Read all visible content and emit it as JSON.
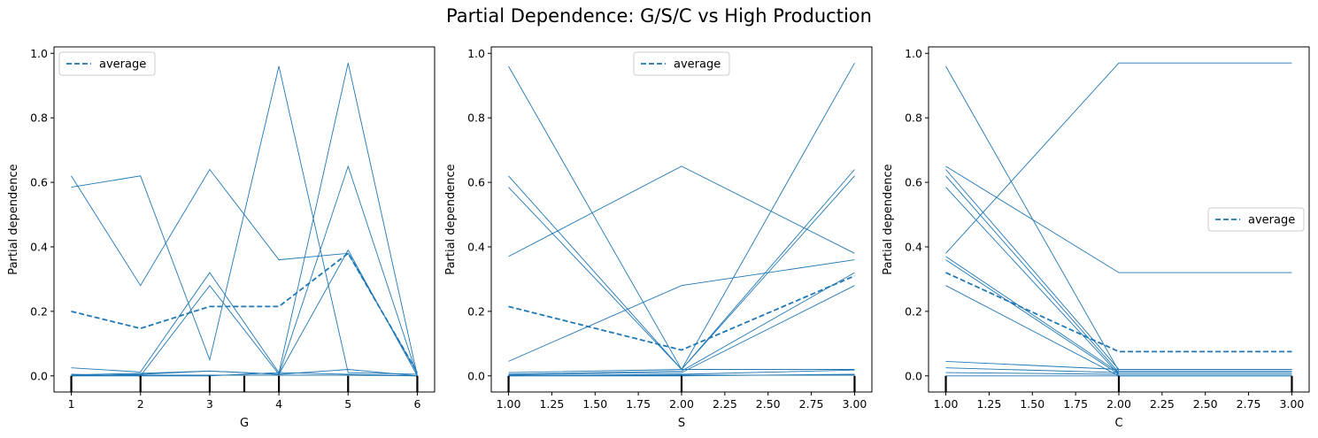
{
  "title": "Partial Dependence: G/S/C vs High Production",
  "colors": {
    "line": "#1f77b4",
    "rug": "#000000",
    "axis": "#000000",
    "legend_border": "#cccccc"
  },
  "chart_data": [
    {
      "type": "line",
      "title": "",
      "xlabel": "G",
      "ylabel": "Partial dependence",
      "xlim": [
        0.75,
        6.25
      ],
      "ylim": [
        -0.05,
        1.02
      ],
      "x_ticks": [
        1,
        2,
        3,
        4,
        5,
        6
      ],
      "x_tick_labels": [
        "1",
        "2",
        "3",
        "4",
        "5",
        "6"
      ],
      "y_ticks": [
        0,
        0.2,
        0.4,
        0.6,
        0.8,
        1.0
      ],
      "y_tick_labels": [
        "0.0",
        "0.2",
        "0.4",
        "0.6",
        "0.8",
        "1.0"
      ],
      "legend": {
        "label": "average",
        "location": "upper-left"
      },
      "x": [
        1,
        2,
        3,
        4,
        5,
        6
      ],
      "ice_lines": [
        [
          0.62,
          0.28,
          0.64,
          0.36,
          0.38,
          0.01
        ],
        [
          0.585,
          0.62,
          0.05,
          0.96,
          0.01,
          0.005
        ],
        [
          0.025,
          0.012,
          0.32,
          0.01,
          0.97,
          0.0
        ],
        [
          0.005,
          0.0,
          0.28,
          0.005,
          0.65,
          0.0
        ],
        [
          0.003,
          0.008,
          0.015,
          0.005,
          0.39,
          0.0
        ],
        [
          0.0,
          0.005,
          0.015,
          0.005,
          0.02,
          0.0
        ],
        [
          0.0,
          0.0,
          0.0,
          0.01,
          0.005,
          0.0
        ],
        [
          0.002,
          0.002,
          0.002,
          0.002,
          0.002,
          0.0
        ]
      ],
      "average": [
        0.2,
        0.147,
        0.215,
        0.215,
        0.38,
        0.01
      ],
      "rug": [
        1,
        2,
        3,
        3.5,
        4,
        5,
        6
      ]
    },
    {
      "type": "line",
      "title": "",
      "xlabel": "S",
      "ylabel": "Partial dependence",
      "xlim": [
        0.9,
        3.1
      ],
      "ylim": [
        -0.05,
        1.02
      ],
      "x_ticks": [
        1.0,
        1.25,
        1.5,
        1.75,
        2.0,
        2.25,
        2.5,
        2.75,
        3.0
      ],
      "x_tick_labels": [
        "1.00",
        "1.25",
        "1.50",
        "1.75",
        "2.00",
        "2.25",
        "2.50",
        "2.75",
        "3.00"
      ],
      "y_ticks": [
        0,
        0.2,
        0.4,
        0.6,
        0.8,
        1.0
      ],
      "y_tick_labels": [
        "0.0",
        "0.2",
        "0.4",
        "0.6",
        "0.8",
        "1.0"
      ],
      "legend": {
        "label": "average",
        "location": "upper-center"
      },
      "x": [
        1,
        2,
        3
      ],
      "ice_lines": [
        [
          0.96,
          0.02,
          0.97
        ],
        [
          0.62,
          0.02,
          0.64
        ],
        [
          0.585,
          0.02,
          0.62
        ],
        [
          0.37,
          0.65,
          0.38
        ],
        [
          0.045,
          0.28,
          0.36
        ],
        [
          0.005,
          0.015,
          0.32
        ],
        [
          0.005,
          0.01,
          0.28
        ],
        [
          0.01,
          0.02,
          0.02
        ],
        [
          0.0,
          0.005,
          0.018
        ],
        [
          0.0,
          0.0,
          0.005
        ],
        [
          0.002,
          0.002,
          0.002
        ]
      ],
      "average": [
        0.215,
        0.08,
        0.31
      ],
      "rug": [
        1,
        2,
        3
      ]
    },
    {
      "type": "line",
      "title": "",
      "xlabel": "C",
      "ylabel": "Partial dependence",
      "xlim": [
        0.9,
        3.1
      ],
      "ylim": [
        -0.05,
        1.02
      ],
      "x_ticks": [
        1.0,
        1.25,
        1.5,
        1.75,
        2.0,
        2.25,
        2.5,
        2.75,
        3.0
      ],
      "x_tick_labels": [
        "1.00",
        "1.25",
        "1.50",
        "1.75",
        "2.00",
        "2.25",
        "2.50",
        "2.75",
        "3.00"
      ],
      "y_ticks": [
        0,
        0.2,
        0.4,
        0.6,
        0.8,
        1.0
      ],
      "y_tick_labels": [
        "0.0",
        "0.2",
        "0.4",
        "0.6",
        "0.8",
        "1.0"
      ],
      "legend": {
        "label": "average",
        "location": "center-right"
      },
      "x": [
        1,
        2,
        3
      ],
      "ice_lines": [
        [
          0.96,
          0.015,
          0.015
        ],
        [
          0.38,
          0.97,
          0.97
        ],
        [
          0.65,
          0.32,
          0.32
        ],
        [
          0.64,
          0.02,
          0.02
        ],
        [
          0.62,
          0.01,
          0.01
        ],
        [
          0.585,
          0.005,
          0.005
        ],
        [
          0.37,
          0.01,
          0.01
        ],
        [
          0.36,
          0.005,
          0.005
        ],
        [
          0.28,
          0.0,
          0.0
        ],
        [
          0.045,
          0.02,
          0.02
        ],
        [
          0.025,
          0.01,
          0.01
        ],
        [
          0.01,
          0.005,
          0.005
        ],
        [
          0.0,
          0.0,
          0.0
        ]
      ],
      "average": [
        0.32,
        0.075,
        0.075
      ],
      "rug": [
        1,
        2,
        3
      ]
    }
  ]
}
